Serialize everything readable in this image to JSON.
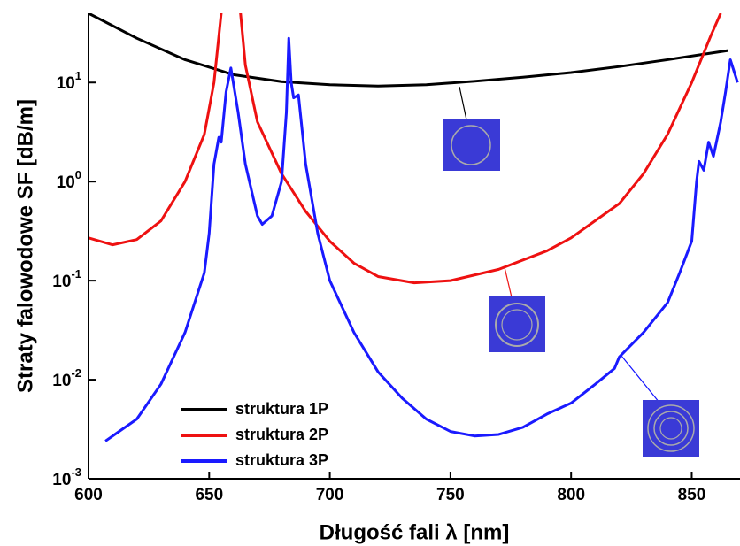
{
  "chart_data": {
    "type": "line",
    "x_label": "Długość fali λ [nm]",
    "y_label": "Straty falowodowe SF [dB/m]",
    "log_y": true,
    "legend": "lower left",
    "xlim": [
      600,
      870
    ],
    "ylim": [
      0.001,
      50
    ],
    "xticks": [
      600,
      650,
      700,
      750,
      800,
      850
    ],
    "yticks": [
      {
        "value": 0.001,
        "label": "10",
        "exponent": "-3"
      },
      {
        "value": 0.01,
        "label": "10",
        "exponent": "-2"
      },
      {
        "value": 0.1,
        "label": "10",
        "exponent": "-1"
      },
      {
        "value": 1,
        "label": "10",
        "exponent": "0"
      },
      {
        "value": 10,
        "label": "10",
        "exponent": "1"
      }
    ],
    "series": [
      {
        "name": "struktura 1P",
        "color": "#000000",
        "x": [
          600,
          620,
          640,
          660,
          680,
          700,
          720,
          740,
          760,
          780,
          800,
          820,
          840,
          865
        ],
        "values": [
          50,
          28,
          17,
          12,
          10.2,
          9.5,
          9.2,
          9.5,
          10.3,
          11.3,
          12.6,
          14.5,
          17,
          21
        ]
      },
      {
        "name": "struktura 2P",
        "color": "#ee1111",
        "x": [
          600,
          610,
          620,
          630,
          640,
          648,
          652,
          655,
          659,
          663,
          665,
          670,
          680,
          690,
          700,
          710,
          720,
          735,
          750,
          770,
          790,
          800,
          820,
          830,
          840,
          850,
          858,
          862
        ],
        "values": [
          0.27,
          0.23,
          0.26,
          0.4,
          1.0,
          3,
          10,
          50,
          100,
          50,
          15,
          4,
          1.2,
          0.5,
          0.25,
          0.15,
          0.11,
          0.095,
          0.1,
          0.13,
          0.2,
          0.27,
          0.6,
          1.2,
          3,
          10,
          30,
          50
        ]
      },
      {
        "name": "struktura 3P",
        "color": "#1a1aff",
        "x": [
          607,
          620,
          630,
          640,
          648,
          650,
          652,
          654,
          655,
          657,
          659,
          662,
          665,
          670,
          672,
          676,
          680,
          682,
          683,
          684,
          685,
          687,
          690,
          695,
          700,
          710,
          720,
          730,
          740,
          750,
          760,
          770,
          780,
          790,
          800,
          810,
          818,
          820,
          830,
          840,
          845,
          850,
          852,
          853,
          855,
          857,
          859,
          862,
          864,
          866,
          869
        ],
        "values": [
          0.0024,
          0.004,
          0.009,
          0.03,
          0.12,
          0.3,
          1.5,
          2.8,
          2.5,
          8,
          14,
          5,
          1.5,
          0.45,
          0.37,
          0.45,
          1.0,
          5,
          28,
          10,
          7,
          7.5,
          1.5,
          0.3,
          0.1,
          0.03,
          0.012,
          0.0065,
          0.004,
          0.003,
          0.0027,
          0.0028,
          0.0033,
          0.0045,
          0.0058,
          0.009,
          0.013,
          0.017,
          0.03,
          0.06,
          0.12,
          0.25,
          1.0,
          1.6,
          1.3,
          2.5,
          1.8,
          4,
          8,
          17,
          10
        ]
      }
    ]
  }
}
